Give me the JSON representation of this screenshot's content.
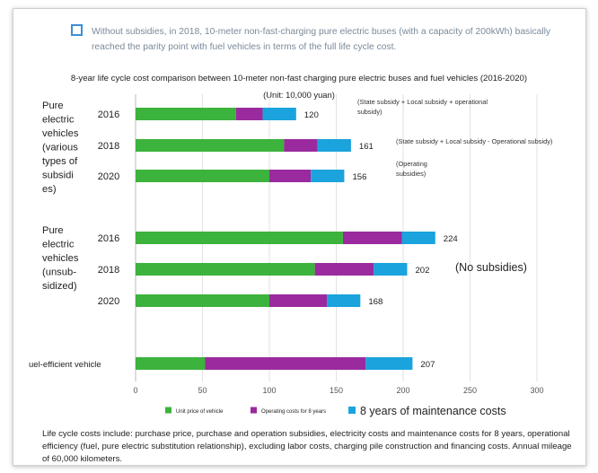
{
  "intro": {
    "text": "Without subsidies, in 2018, 10-meter non-fast-charging pure electric buses (with a capacity of 200kWh) basically reached the parity point with fuel vehicles in terms of the full life cycle cost."
  },
  "colors": {
    "unit_price": "#3cb33c",
    "operating": "#9a2a9e",
    "maintenance": "#1aa3dd",
    "accent": "#3b8fd6"
  },
  "chart_data": {
    "type": "bar",
    "orientation": "horizontal",
    "stacked": true,
    "title": "8-year life cycle cost comparison between 10-meter non-fast charging pure electric buses and fuel vehicles (2016-2020)",
    "subtitle": "(Unit: 10,000 yuan)",
    "xlim": [
      0,
      300
    ],
    "xticks": [
      "0",
      "50",
      "100",
      "150",
      "200",
      "250",
      "300"
    ],
    "grid": true,
    "groups": [
      {
        "label": "Pure electric vehicles (various types of subsidies)",
        "label_lines": [
          "Pure",
          "electric",
          "vehicles",
          "(various",
          "types of",
          "subsidi",
          "es)"
        ],
        "rows": [
          {
            "year": "2016",
            "values": [
              75,
              20,
              25
            ],
            "total": "120",
            "note": "(State subsidy + Local subsidy + operational subsidy)",
            "note_lines": [
              "(State subsidy + Local subsidy + operational",
              "subsidy)"
            ]
          },
          {
            "year": "2018",
            "values": [
              111,
              25,
              25
            ],
            "total": "161",
            "note": "(State subsidy + Local subsidy - Operational subsidy)",
            "note_lines": [
              "(State subsidy + Local subsidy - Operational subsidy)"
            ]
          },
          {
            "year": "2020",
            "values": [
              100,
              31,
              25
            ],
            "total": "156",
            "note": "(Operating subsidies)",
            "note_lines": [
              "(Operating",
              "subsidies)"
            ]
          }
        ]
      },
      {
        "label": "Pure electric vehicles (unsubsidized)",
        "label_lines": [
          "Pure",
          "electric",
          "vehicles",
          "(unsub-",
          "sidized)"
        ],
        "rows": [
          {
            "year": "2016",
            "values": [
              155,
              44,
              25
            ],
            "total": "224",
            "note": ""
          },
          {
            "year": "2018",
            "values": [
              134,
              44,
              25
            ],
            "total": "202",
            "note": ""
          },
          {
            "year": "2020",
            "values": [
              100,
              43,
              25
            ],
            "total": "168",
            "note": ""
          }
        ],
        "annotation": "(No subsidies)"
      },
      {
        "label": "Fuel-efficient vehicle",
        "label_lines": [
          "uel-efficient vehicle"
        ],
        "rows": [
          {
            "year": "",
            "values": [
              52,
              120,
              35
            ],
            "total": "207",
            "note": ""
          }
        ]
      }
    ],
    "series": [
      {
        "name": "Unit price of vehicle"
      },
      {
        "name": "Operating costs for 8 years"
      },
      {
        "name": "8 years of maintenance costs"
      }
    ],
    "legend_position": "bottom"
  },
  "footnote": {
    "text": "Life cycle costs include: purchase price, purchase and operation subsidies, electricity costs and maintenance costs for 8 years, operational efficiency (fuel, pure electric substitution relationship), excluding labor costs, charging pile construction and financing costs. Annual mileage of 60,000 kilometers."
  }
}
